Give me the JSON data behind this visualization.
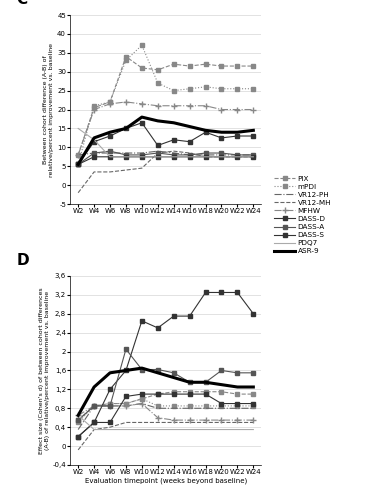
{
  "weeks": [
    2,
    4,
    6,
    8,
    10,
    12,
    14,
    16,
    18,
    20,
    22,
    24
  ],
  "panel_C": {
    "ylabel": "Between cohort difference (A-B) of\nrelative/percent improvement vs. baseline",
    "ylim": [
      -5,
      45
    ],
    "yticks": [
      -5,
      0,
      5,
      10,
      15,
      20,
      25,
      30,
      35,
      40,
      45
    ],
    "series": {
      "PIX": [
        8.0,
        20.5,
        22.0,
        34.0,
        31.0,
        30.5,
        32.0,
        31.5,
        32.0,
        31.5,
        31.5,
        31.5
      ],
      "mPDI": [
        5.5,
        21.0,
        22.0,
        33.0,
        37.0,
        27.0,
        25.0,
        25.5,
        26.0,
        25.5,
        25.5,
        25.5
      ],
      "VR12-PH": [
        8.0,
        8.5,
        8.5,
        8.5,
        8.5,
        9.0,
        8.5,
        8.0,
        8.0,
        8.0,
        8.0,
        8.0
      ],
      "VR12-MH": [
        -2.0,
        3.5,
        3.5,
        4.0,
        4.5,
        8.5,
        9.0,
        8.5,
        7.5,
        7.5,
        7.5,
        7.5
      ],
      "MFHW": [
        8.0,
        20.0,
        21.5,
        22.0,
        21.5,
        21.0,
        21.0,
        21.0,
        21.0,
        20.0,
        20.0,
        20.0
      ],
      "DASS-D": [
        5.5,
        11.5,
        13.0,
        15.0,
        16.5,
        10.5,
        12.0,
        11.5,
        14.0,
        12.5,
        13.0,
        13.0
      ],
      "DASS-A": [
        5.5,
        8.5,
        9.0,
        8.0,
        8.0,
        8.5,
        8.0,
        8.0,
        8.5,
        8.5,
        8.0,
        8.0
      ],
      "DASS-S": [
        5.5,
        7.5,
        7.5,
        7.5,
        7.5,
        7.5,
        7.5,
        7.5,
        7.5,
        7.5,
        7.5,
        7.5
      ],
      "PDQ7": [
        15.0,
        12.0,
        7.5,
        7.5,
        7.5,
        7.5,
        7.5,
        7.5,
        7.5,
        7.5,
        7.5,
        7.5
      ],
      "ASR-9": [
        5.5,
        12.5,
        14.0,
        15.0,
        18.0,
        17.0,
        16.5,
        15.5,
        14.5,
        14.0,
        14.0,
        14.5
      ]
    }
  },
  "panel_D": {
    "ylabel": "Effect size (Cohen's d) of between cohort differences\n(A-B) of relative/percent improvement vs. baseline",
    "ylim": [
      -0.4,
      3.6
    ],
    "yticks": [
      -0.4,
      0.0,
      0.4,
      0.8,
      1.2,
      1.6,
      2.0,
      2.4,
      2.8,
      3.2,
      3.6
    ],
    "series": {
      "PIX": [
        0.55,
        0.85,
        0.9,
        0.9,
        1.0,
        1.1,
        1.15,
        1.15,
        1.15,
        1.15,
        1.1,
        1.1
      ],
      "mPDI": [
        0.5,
        0.85,
        0.9,
        0.9,
        1.0,
        0.85,
        0.85,
        0.85,
        0.85,
        0.85,
        0.85,
        0.85
      ],
      "VR12-PH": [
        0.35,
        0.85,
        0.85,
        0.85,
        0.9,
        0.8,
        0.8,
        0.8,
        0.8,
        0.8,
        0.8,
        0.8
      ],
      "VR12-MH": [
        -0.08,
        0.35,
        0.4,
        0.5,
        0.5,
        0.5,
        0.5,
        0.5,
        0.5,
        0.5,
        0.5,
        0.5
      ],
      "MFHW": [
        0.65,
        0.85,
        0.85,
        0.85,
        0.9,
        0.6,
        0.55,
        0.55,
        0.55,
        0.55,
        0.55,
        0.55
      ],
      "DASS-D": [
        0.2,
        0.5,
        1.2,
        1.6,
        2.65,
        2.5,
        2.75,
        2.75,
        3.25,
        3.25,
        3.25,
        2.8
      ],
      "DASS-A": [
        0.55,
        0.85,
        0.85,
        2.05,
        1.62,
        1.62,
        1.55,
        1.35,
        1.35,
        1.6,
        1.55,
        1.55
      ],
      "DASS-S": [
        0.2,
        0.5,
        0.5,
        1.05,
        1.1,
        1.1,
        1.1,
        1.1,
        1.1,
        0.9,
        0.9,
        0.9
      ],
      "PDQ7": [
        0.65,
        0.35,
        0.35,
        0.35,
        0.35,
        0.35,
        0.35,
        0.35,
        0.35,
        0.35,
        0.35,
        0.35
      ],
      "ASR-9": [
        0.65,
        1.25,
        1.55,
        1.6,
        1.65,
        1.55,
        1.45,
        1.35,
        1.35,
        1.3,
        1.25,
        1.25
      ]
    }
  },
  "line_styles": {
    "PIX": {
      "color": "#888888",
      "linestyle": "--",
      "linewidth": 0.8,
      "marker": "s",
      "markersize": 3,
      "markevery": 1
    },
    "mPDI": {
      "color": "#888888",
      "linestyle": ":",
      "linewidth": 0.8,
      "marker": "s",
      "markersize": 3,
      "markevery": 1
    },
    "VR12-PH": {
      "color": "#666666",
      "linestyle": "-.",
      "linewidth": 0.8,
      "marker": null,
      "markersize": 3,
      "markevery": 1
    },
    "VR12-MH": {
      "color": "#666666",
      "linestyle": "--",
      "linewidth": 0.8,
      "marker": null,
      "markersize": 3,
      "markevery": 1
    },
    "MFHW": {
      "color": "#888888",
      "linestyle": "-.",
      "linewidth": 0.8,
      "marker": "+",
      "markersize": 4,
      "markevery": 1
    },
    "DASS-D": {
      "color": "#333333",
      "linestyle": "-",
      "linewidth": 0.8,
      "marker": "s",
      "markersize": 3,
      "markevery": 1
    },
    "DASS-A": {
      "color": "#555555",
      "linestyle": "-",
      "linewidth": 0.8,
      "marker": "s",
      "markersize": 3,
      "markevery": 1
    },
    "DASS-S": {
      "color": "#333333",
      "linestyle": "-",
      "linewidth": 0.8,
      "marker": "s",
      "markersize": 3,
      "markevery": 1
    },
    "PDQ7": {
      "color": "#aaaaaa",
      "linestyle": "-",
      "linewidth": 0.8,
      "marker": null,
      "markersize": 3,
      "markevery": 1
    },
    "ASR-9": {
      "color": "#000000",
      "linestyle": "-",
      "linewidth": 2.2,
      "marker": null,
      "markersize": 3,
      "markevery": 1
    }
  },
  "xlabel": "Evaluation timepoint (weeks beyond baseline)",
  "panel_labels": [
    "C",
    "D"
  ],
  "legend_order": [
    "PIX",
    "mPDI",
    "VR12-PH",
    "VR12-MH",
    "MFHW",
    "DASS-D",
    "DASS-A",
    "DASS-S",
    "PDQ7",
    "ASR-9"
  ]
}
